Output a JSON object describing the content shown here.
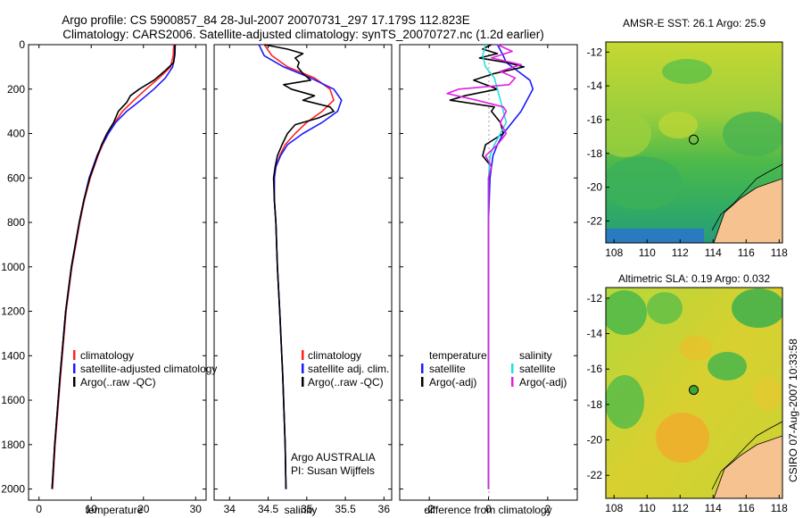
{
  "titles": {
    "line1": "Argo profile: CS 5900857_84 28-Jul-2007 20070731_297 17.179S 112.823E",
    "line2": "Climatology: CARS2006. Satellite-adjusted climatology: synTS_20070727.nc (1.2d earlier)"
  },
  "credit": "CSIRO 07-Aug-2007 10:33:58",
  "argo_note": {
    "line1": "Argo AUSTRALIA",
    "line2": "PI: Susan Wijffels"
  },
  "colors": {
    "climatology": "#ff2222",
    "satellite": "#1a1aff",
    "argo": "#000000",
    "sat_salinity": "#22e0e0",
    "argo_salinity": "#e020e0"
  },
  "chart_data": [
    {
      "type": "line",
      "id": "temperature",
      "xlabel": "temperature",
      "xlim": [
        -2,
        32
      ],
      "ylim": [
        0,
        2050
      ],
      "xticks": [
        0,
        10,
        20,
        30
      ],
      "yticks": [
        0,
        200,
        400,
        600,
        800,
        1000,
        1200,
        1400,
        1600,
        1800,
        2000
      ],
      "legend": [
        "climatology",
        "satellite-adjusted climatology",
        "Argo(..raw -QC)"
      ],
      "series": [
        {
          "name": "climatology",
          "color": "#ff2222",
          "depth": [
            0,
            50,
            100,
            150,
            200,
            250,
            300,
            350,
            400,
            450,
            500,
            600,
            700,
            800,
            1000,
            1200,
            1500,
            1800,
            2000
          ],
          "values": [
            25.8,
            25.7,
            25.2,
            23,
            20.5,
            18.2,
            16,
            14.5,
            13.3,
            12.2,
            11.3,
            9.8,
            8.7,
            7.8,
            6.3,
            5.2,
            4.1,
            3.1,
            2.6
          ]
        },
        {
          "name": "satellite-adjusted climatology",
          "color": "#1a1aff",
          "depth": [
            0,
            50,
            100,
            150,
            200,
            250,
            300,
            350,
            400,
            450,
            500,
            600,
            700,
            800,
            1000,
            1200,
            1500,
            1800,
            2000
          ],
          "values": [
            26.1,
            26,
            25.6,
            24.2,
            22,
            19.5,
            16.8,
            14.7,
            13.3,
            12.1,
            11.1,
            9.6,
            8.6,
            7.7,
            6.2,
            5.1,
            4,
            3,
            2.5
          ]
        },
        {
          "name": "Argo(..raw -QC)",
          "color": "#000000",
          "depth": [
            0,
            40,
            80,
            120,
            160,
            200,
            230,
            260,
            300,
            350,
            400,
            450,
            500,
            600,
            700,
            800,
            1000,
            1200,
            1500,
            1800,
            2000
          ],
          "values": [
            26,
            26,
            25.8,
            24,
            22,
            19.2,
            17.5,
            16.8,
            15.2,
            14.3,
            13,
            12,
            11.2,
            9.7,
            8.6,
            7.7,
            6.2,
            5.1,
            4,
            3,
            2.5
          ]
        }
      ]
    },
    {
      "type": "line",
      "id": "salinity",
      "xlabel": "salinity",
      "xlim": [
        33.8,
        36.1
      ],
      "ylim": [
        0,
        2050
      ],
      "xticks": [
        34,
        34.5,
        35,
        35.5,
        36
      ],
      "legend": [
        "climatology",
        "satellite adj. clim.",
        "Argo(..raw -QC)"
      ],
      "series": [
        {
          "name": "climatology",
          "color": "#ff2222",
          "depth": [
            0,
            50,
            100,
            150,
            200,
            250,
            300,
            350,
            400,
            450,
            500,
            550,
            600,
            700,
            800,
            1000,
            1200,
            1500,
            1800,
            2000
          ],
          "values": [
            34.45,
            34.55,
            34.75,
            35.1,
            35.3,
            35.35,
            35.2,
            35,
            34.85,
            34.72,
            34.65,
            34.6,
            34.58,
            34.58,
            34.6,
            34.62,
            34.65,
            34.69,
            34.72,
            34.73
          ]
        },
        {
          "name": "satellite adj. clim.",
          "color": "#1a1aff",
          "depth": [
            0,
            50,
            100,
            150,
            200,
            250,
            300,
            350,
            400,
            450,
            500,
            550,
            600,
            700,
            800,
            1000,
            1200,
            1500,
            1800,
            2000
          ],
          "values": [
            34.38,
            34.45,
            34.7,
            35.05,
            35.35,
            35.45,
            35.4,
            35.2,
            34.95,
            34.75,
            34.66,
            34.6,
            34.58,
            34.58,
            34.6,
            34.62,
            34.65,
            34.69,
            34.72,
            34.73
          ]
        },
        {
          "name": "Argo(..raw -QC)",
          "color": "#000000",
          "depth": [
            0,
            20,
            40,
            60,
            80,
            100,
            130,
            160,
            180,
            200,
            230,
            250,
            280,
            300,
            330,
            360,
            400,
            450,
            500,
            550,
            600,
            700,
            800,
            1000,
            1200,
            1500,
            1800,
            2000
          ],
          "values": [
            34.45,
            34.75,
            34.95,
            34.85,
            34.9,
            34.88,
            34.95,
            35.05,
            34.7,
            34.8,
            35.1,
            34.95,
            35.3,
            35.35,
            35.15,
            34.85,
            34.75,
            34.68,
            34.62,
            34.59,
            34.57,
            34.58,
            34.6,
            34.62,
            34.65,
            34.69,
            34.72,
            34.73
          ]
        }
      ]
    },
    {
      "type": "line",
      "id": "difference",
      "xlabel": "difference from climatology",
      "xlim": [
        -3,
        3
      ],
      "ylim": [
        0,
        2050
      ],
      "xticks": [
        -2,
        0,
        2
      ],
      "legend_left_title": "temperature",
      "legend_right_title": "salinity",
      "legend_left": [
        "satellite",
        "Argo(-adj)"
      ],
      "legend_right": [
        "satellite",
        "Argo(-adj)"
      ],
      "series": [
        {
          "name": "temperature satellite",
          "color": "#1a1aff",
          "depth": [
            0,
            50,
            80,
            120,
            160,
            200,
            250,
            300,
            350,
            400,
            450,
            500,
            600,
            800,
            1000,
            1500,
            2000
          ],
          "values": [
            0.3,
            0.5,
            0.6,
            1.0,
            1.4,
            1.5,
            1.3,
            1.1,
            0.8,
            0.5,
            0.3,
            0.15,
            0.05,
            0,
            0,
            0,
            0
          ]
        },
        {
          "name": "temperature Argo(-adj)",
          "color": "#000000",
          "depth": [
            0,
            20,
            40,
            60,
            80,
            100,
            130,
            160,
            200,
            230,
            250,
            280,
            300,
            350,
            400,
            450,
            500,
            550,
            600,
            800,
            1000,
            1500,
            2000
          ],
          "values": [
            0.1,
            -0.2,
            0.3,
            -0.3,
            0.6,
            1.2,
            0.2,
            -0.5,
            0.3,
            -0.8,
            -1.3,
            0.2,
            0.1,
            0.4,
            0.5,
            -0.1,
            -0.2,
            0.1,
            0,
            0,
            0,
            0,
            0
          ]
        },
        {
          "name": "salinity satellite",
          "color": "#22e0e0",
          "depth": [
            0,
            50,
            100,
            150,
            200,
            250,
            300,
            350,
            400,
            450,
            500,
            600,
            800,
            1000,
            1500,
            2000
          ],
          "values": [
            -0.1,
            -0.2,
            -0.1,
            0.2,
            0.3,
            0.4,
            0.5,
            0.6,
            0.4,
            0.2,
            0.05,
            0,
            0,
            0,
            0,
            0
          ]
        },
        {
          "name": "salinity Argo(-adj)",
          "color": "#e020e0",
          "depth": [
            0,
            30,
            60,
            90,
            120,
            150,
            180,
            200,
            220,
            250,
            280,
            300,
            350,
            400,
            450,
            500,
            550,
            600,
            800,
            1000,
            1500,
            2000
          ],
          "values": [
            0.3,
            0.8,
            0.1,
            1.1,
            0.4,
            0.9,
            0.7,
            -1.0,
            -1.4,
            -0.4,
            0.5,
            0.6,
            0.4,
            0.6,
            0.3,
            -0.1,
            0.1,
            0,
            0,
            0,
            0,
            0
          ]
        }
      ]
    },
    {
      "type": "heatmap",
      "id": "sst-map",
      "title": "AMSR-E SST: 26.1 Argo: 25.9",
      "xlim": [
        107.5,
        118.2
      ],
      "ylim": [
        -23.3,
        -11.4
      ],
      "xticks": [
        108,
        110,
        112,
        114,
        116,
        118
      ],
      "yticks": [
        -12,
        -14,
        -16,
        -18,
        -20,
        -22
      ],
      "argo_position": {
        "lon": 112.823,
        "lat": -17.179
      },
      "marker_fill": "none"
    },
    {
      "type": "heatmap",
      "id": "sla-map",
      "title": "Altimetric SLA: 0.19 Argo: 0.032",
      "xlim": [
        107.5,
        118.2
      ],
      "ylim": [
        -23.3,
        -11.4
      ],
      "xticks": [
        108,
        110,
        112,
        114,
        116,
        118
      ],
      "yticks": [
        -12,
        -14,
        -16,
        -18,
        -20,
        -22
      ],
      "argo_position": {
        "lon": 112.823,
        "lat": -17.179
      },
      "marker_fill": "#3aa83a"
    }
  ]
}
